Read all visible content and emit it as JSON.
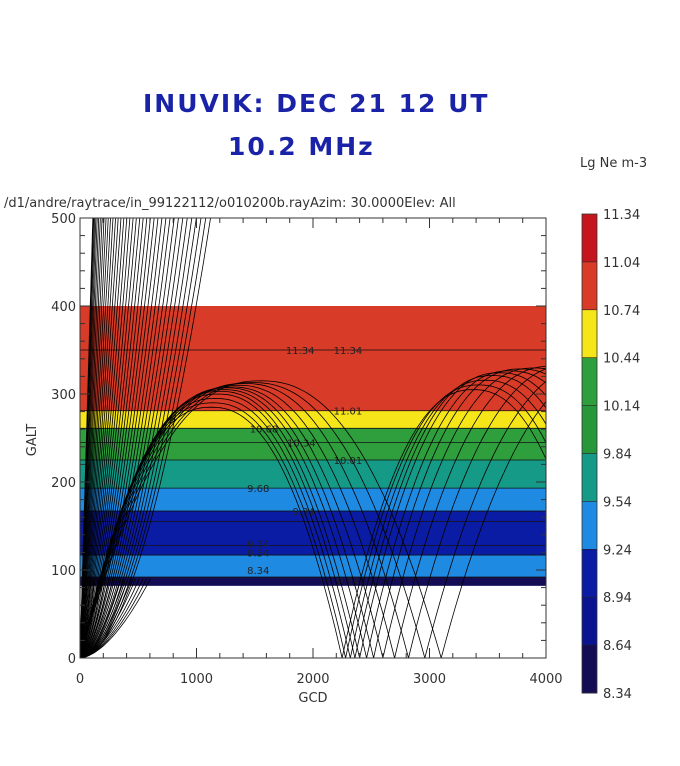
{
  "chart_data": {
    "type": "heatmap",
    "title_line1": "INUVIK:  DEC 21   12 UT",
    "title_line2": "10.2  MHz",
    "subtitle": "/d1/andre/raytrace/in_99122112/o010200b.rayAzim: 30.0000Elev: All",
    "xlabel": "GCD",
    "ylabel": "GALT",
    "xlim": [
      0,
      4000
    ],
    "ylim": [
      0,
      500
    ],
    "xticks": [
      "0",
      "1000",
      "2000",
      "3000",
      "4000"
    ],
    "yticks": [
      "0",
      "100",
      "200",
      "300",
      "400",
      "500"
    ],
    "colorbar": {
      "title": "Lg Ne m-3",
      "levels": [
        "11.34",
        "11.04",
        "10.74",
        "10.44",
        "10.14",
        "9.84",
        "9.54",
        "9.24",
        "8.94",
        "8.64",
        "8.34"
      ],
      "colors": [
        "#c4161c",
        "#d83b27",
        "#f6e619",
        "#2f9e3d",
        "#27973a",
        "#149a86",
        "#1f8ae2",
        "#0b1ca4",
        "#0a1490",
        "#140d55"
      ]
    },
    "bands": [
      {
        "alt_from": 281,
        "alt_to": 400,
        "color": "#d83b27"
      },
      {
        "alt_from": 261,
        "alt_to": 281,
        "color": "#f6e619"
      },
      {
        "alt_from": 225,
        "alt_to": 261,
        "color": "#2f9e3d"
      },
      {
        "alt_from": 193,
        "alt_to": 225,
        "color": "#149a86"
      },
      {
        "alt_from": 167,
        "alt_to": 193,
        "color": "#1f8ae2"
      },
      {
        "alt_from": 117,
        "alt_to": 167,
        "color": "#0b1ca4"
      },
      {
        "alt_from": 92,
        "alt_to": 117,
        "color": "#1f8ae2"
      },
      {
        "alt_from": 82,
        "alt_to": 92,
        "color": "#140d55"
      }
    ],
    "contours": [
      {
        "alt": 350
      },
      {
        "alt": 281
      },
      {
        "alt": 261
      },
      {
        "alt": 245
      },
      {
        "alt": 225
      },
      {
        "alt": 193
      },
      {
        "alt": 167
      },
      {
        "alt": 155
      },
      {
        "alt": 128
      },
      {
        "alt": 117
      },
      {
        "alt": 92
      }
    ],
    "contour_labels": [
      {
        "text": "11.34",
        "gcd": 1890,
        "alt": 350
      },
      {
        "text": "11.34",
        "gcd": 2300,
        "alt": 350
      },
      {
        "text": "11.01",
        "gcd": 2300,
        "alt": 281
      },
      {
        "text": "10.68",
        "gcd": 1580,
        "alt": 261
      },
      {
        "text": "10.34",
        "gcd": 1900,
        "alt": 245
      },
      {
        "text": "10.01",
        "gcd": 2300,
        "alt": 225
      },
      {
        "text": "9.68",
        "gcd": 1530,
        "alt": 193
      },
      {
        "text": "9.34",
        "gcd": 1920,
        "alt": 167
      },
      {
        "text": "9.34",
        "gcd": 1530,
        "alt": 130
      },
      {
        "text": "9.34",
        "gcd": 1530,
        "alt": 120
      },
      {
        "text": "8.34",
        "gcd": 1530,
        "alt": 100
      },
      {
        "text": "9.34",
        "gcd": 2300,
        "alt": 88
      }
    ],
    "rays_penetrating": {
      "count": 40,
      "top_gcd_range": [
        110,
        1100
      ]
    },
    "rays_reflecting": [
      {
        "hop_gcd": 2250,
        "apex_alt": 285
      },
      {
        "hop_gcd": 2280,
        "apex_alt": 290
      },
      {
        "hop_gcd": 2320,
        "apex_alt": 295
      },
      {
        "hop_gcd": 2360,
        "apex_alt": 300
      },
      {
        "hop_gcd": 2400,
        "apex_alt": 303
      },
      {
        "hop_gcd": 2460,
        "apex_alt": 305
      },
      {
        "hop_gcd": 2520,
        "apex_alt": 307
      },
      {
        "hop_gcd": 2600,
        "apex_alt": 308
      },
      {
        "hop_gcd": 2700,
        "apex_alt": 310
      },
      {
        "hop_gcd": 2820,
        "apex_alt": 312
      },
      {
        "hop_gcd": 2960,
        "apex_alt": 313
      },
      {
        "hop_gcd": 3100,
        "apex_alt": 315
      }
    ]
  }
}
